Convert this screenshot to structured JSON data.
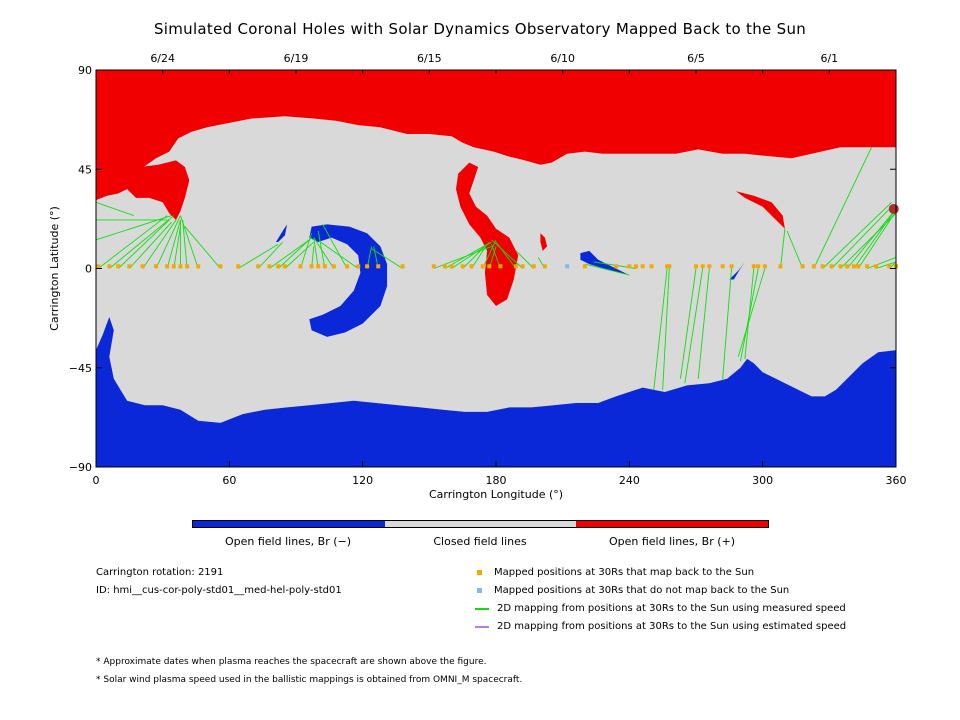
{
  "chart_data": {
    "type": "map",
    "title": "Simulated Coronal Holes with Solar Dynamics Observatory Mapped Back to the Sun",
    "xlabel": "Carrington Longitude (°)",
    "ylabel": "Carrington Latitude (°)",
    "xlim": [
      0,
      360
    ],
    "ylim": [
      -90,
      90
    ],
    "xticks": [
      0,
      60,
      120,
      180,
      240,
      300,
      360
    ],
    "yticks": [
      -90,
      -45,
      0,
      45,
      90
    ],
    "top_axis_dates": [
      {
        "label": "6/24",
        "lon": 30
      },
      {
        "label": "6/19",
        "lon": 90
      },
      {
        "label": "6/15",
        "lon": 150
      },
      {
        "label": "6/10",
        "lon": 210
      },
      {
        "label": "6/5",
        "lon": 270
      },
      {
        "label": "6/1",
        "lon": 330
      }
    ],
    "regions": {
      "open_negative_color": "#0b28d8",
      "closed_color": "#d9d9d9",
      "open_positive_color": "#f00000"
    },
    "mapped_points_color": "#f5a800",
    "unmapped_points_color": "#7fb8f0",
    "measured_line_color": "#11dd11",
    "estimated_line_color": "#b37fe6",
    "mapped_positions_lon": [
      1,
      6,
      10,
      15,
      21,
      27,
      32,
      35,
      38,
      41,
      46,
      56,
      64,
      73,
      78,
      82,
      85,
      92,
      97,
      100,
      103,
      107,
      113,
      118,
      122,
      127,
      138,
      152,
      157,
      160,
      165,
      169,
      174,
      177,
      182,
      189,
      192,
      197,
      202,
      220,
      234,
      240,
      243,
      246,
      250,
      257,
      258,
      270,
      273,
      276,
      282,
      286,
      296,
      298,
      301,
      308,
      318,
      323,
      327,
      331,
      335,
      338,
      341,
      343,
      347,
      351,
      357,
      360
    ],
    "unmapped_positions_lon": [
      212
    ]
  },
  "colorbar": {
    "neg_label": "Open field lines, Br (−)",
    "closed_label": "Closed field lines",
    "pos_label": "Open field lines, Br (+)"
  },
  "info": {
    "rotation": "Carrington rotation: 2191",
    "id": "ID: hmi__cus-cor-poly-std01__med-hel-poly-std01"
  },
  "legend": {
    "mapped": "Mapped positions at 30Rs that map back to the Sun",
    "unmapped": "Mapped positions at 30Rs that do not map back to the Sun",
    "measured": "2D mapping from positions at 30Rs to the Sun using measured speed",
    "estimated": "2D mapping from positions at 30Rs to the Sun using estimated speed"
  },
  "notes": {
    "dates": "* Approximate dates when plasma reaches the spacecraft are shown above the figure.",
    "speed": "* Solar wind plasma speed used in the ballistic mappings is obtained from OMNI_M spacecraft."
  }
}
